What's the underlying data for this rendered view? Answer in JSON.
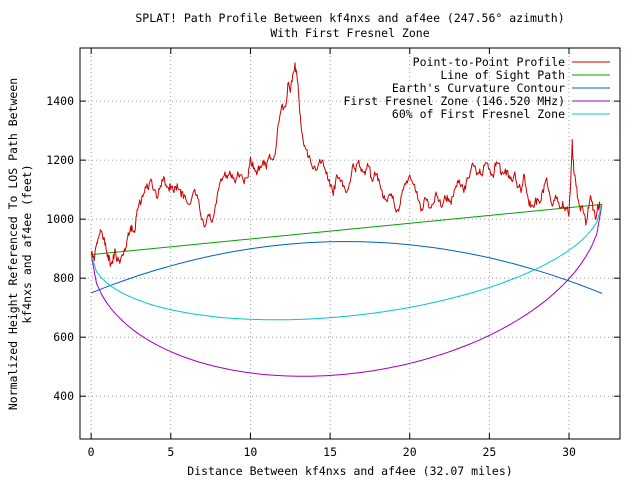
{
  "chart_data": {
    "type": "line",
    "title": "SPLAT! Path Profile Between kf4nxs and af4ee (247.56° azimuth)",
    "subtitle": "With First Fresnel Zone",
    "xlabel": "Distance Between kf4nxs and af4ee (32.07 miles)",
    "ylabel_line1": "Normalized Height Referenced To LOS Path Between",
    "ylabel_line2": "kf4nxs and af4ee (feet)",
    "xlim": [
      -0.7,
      33.2
    ],
    "ylim": [
      255,
      1580
    ],
    "x_ticks": [
      0,
      5,
      10,
      15,
      20,
      25,
      30
    ],
    "x_tick_labels": [
      "0",
      "5",
      "10",
      "15",
      "20",
      "25",
      "30"
    ],
    "y_ticks": [
      400,
      600,
      800,
      1000,
      1200,
      1400
    ],
    "y_tick_labels": [
      "400",
      "600",
      "800",
      "1000",
      "1200",
      "1400"
    ],
    "grid": true,
    "legend_position": "top-right",
    "series": [
      {
        "name": "Point-to-Point Profile",
        "color": "#cc0000",
        "x": [
          0,
          0.2,
          0.35,
          0.5,
          0.6,
          0.75,
          0.9,
          1.05,
          1.2,
          1.35,
          1.5,
          1.65,
          1.8,
          1.95,
          2.1,
          2.25,
          2.4,
          2.55,
          2.7,
          2.85,
          3.0,
          3.2,
          3.4,
          3.6,
          3.8,
          4.0,
          4.2,
          4.4,
          4.6,
          4.8,
          5.0,
          5.2,
          5.4,
          5.6,
          5.8,
          6.0,
          6.2,
          6.4,
          6.6,
          6.8,
          7.0,
          7.2,
          7.4,
          7.6,
          7.8,
          8.0,
          8.2,
          8.4,
          8.6,
          8.8,
          9.0,
          9.2,
          9.4,
          9.6,
          9.8,
          10.0,
          10.2,
          10.4,
          10.6,
          10.8,
          11.0,
          11.2,
          11.4,
          11.6,
          11.8,
          12.0,
          12.2,
          12.35,
          12.5,
          12.65,
          12.8,
          12.95,
          13.1,
          13.25,
          13.4,
          13.6,
          13.8,
          14.0,
          14.2,
          14.4,
          14.6,
          14.8,
          15.0,
          15.2,
          15.4,
          15.6,
          15.8,
          16.0,
          16.2,
          16.4,
          16.6,
          16.8,
          17.0,
          17.2,
          17.4,
          17.6,
          17.8,
          18.0,
          18.2,
          18.4,
          18.6,
          18.8,
          19.0,
          19.2,
          19.4,
          19.6,
          19.8,
          20.0,
          20.2,
          20.4,
          20.6,
          20.8,
          21.0,
          21.2,
          21.4,
          21.6,
          21.8,
          22.0,
          22.2,
          22.4,
          22.6,
          22.8,
          23.0,
          23.2,
          23.4,
          23.6,
          23.8,
          24.0,
          24.2,
          24.4,
          24.6,
          24.8,
          25.0,
          25.2,
          25.4,
          25.6,
          25.8,
          26.0,
          26.2,
          26.4,
          26.6,
          26.8,
          27.0,
          27.2,
          27.4,
          27.6,
          27.8,
          28.0,
          28.2,
          28.4,
          28.6,
          28.8,
          29.0,
          29.2,
          29.4,
          29.6,
          29.8,
          30.0,
          30.1,
          30.2,
          30.3,
          30.45,
          30.6,
          30.75,
          30.9,
          31.05,
          31.2,
          31.35,
          31.5,
          31.65,
          31.8,
          31.95
        ],
        "values": [
          880,
          860,
          920,
          945,
          960,
          930,
          920,
          880,
          840,
          850,
          900,
          860,
          850,
          880,
          900,
          930,
          950,
          980,
          960,
          1010,
          1050,
          1080,
          1110,
          1100,
          1130,
          1100,
          1080,
          1110,
          1140,
          1110,
          1100,
          1090,
          1120,
          1100,
          1070,
          1060,
          1050,
          1090,
          1080,
          1040,
          1000,
          980,
          1010,
          990,
          1050,
          1100,
          1130,
          1160,
          1150,
          1140,
          1130,
          1160,
          1150,
          1120,
          1140,
          1210,
          1170,
          1150,
          1180,
          1200,
          1170,
          1220,
          1200,
          1240,
          1330,
          1390,
          1380,
          1460,
          1430,
          1490,
          1530,
          1470,
          1360,
          1290,
          1250,
          1210,
          1190,
          1180,
          1170,
          1190,
          1180,
          1160,
          1110,
          1080,
          1150,
          1140,
          1110,
          1090,
          1120,
          1180,
          1160,
          1200,
          1170,
          1150,
          1180,
          1140,
          1160,
          1130,
          1100,
          1080,
          1060,
          1080,
          1060,
          1030,
          1050,
          1100,
          1130,
          1150,
          1120,
          1090,
          1060,
          1030,
          1070,
          1040,
          1050,
          1080,
          1060,
          1040,
          1080,
          1060,
          1050,
          1100,
          1130,
          1110,
          1090,
          1140,
          1160,
          1180,
          1150,
          1170,
          1160,
          1190,
          1170,
          1150,
          1180,
          1190,
          1160,
          1170,
          1140,
          1130,
          1160,
          1110,
          1090,
          1150,
          1080,
          1040,
          1040,
          1070,
          1060,
          1090,
          1140,
          1080,
          1050,
          1070,
          1040,
          1060,
          1040,
          1010,
          1120,
          1270,
          1160,
          1110,
          1060,
          1040,
          1020,
          980,
          1040,
          1080,
          1030,
          1000,
          1050,
          1040
        ]
      },
      {
        "name": "Line of Sight Path",
        "color": "#00a000",
        "x": [
          0,
          32.07
        ],
        "values": [
          880,
          1050
        ]
      },
      {
        "name": "Earth's Curvature Contour",
        "color": "#0060c8",
        "x": [
          0,
          2,
          4,
          6,
          8,
          10,
          12,
          14,
          16,
          18,
          20,
          22,
          24,
          26,
          28,
          30,
          32.07
        ],
        "values": [
          750,
          806,
          848,
          880,
          903,
          917,
          924,
          924,
          918,
          905,
          884,
          856,
          820,
          777,
          727,
          670,
          750
        ]
      },
      {
        "name": "First Fresnel Zone (146.520 MHz)",
        "color": "#a000c0",
        "fresnel_radius_midpath_ft": 490
      },
      {
        "name": "60% of First Fresnel Zone",
        "color": "#00c8d0",
        "fresnel_radius_midpath_ft": 294
      }
    ]
  }
}
